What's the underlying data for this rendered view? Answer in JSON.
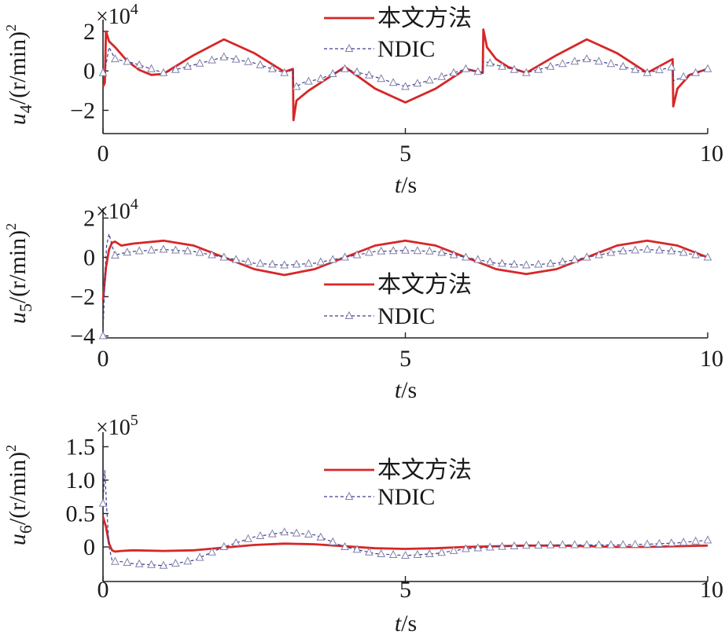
{
  "chart_data": [
    {
      "type": "line",
      "id": "u4",
      "ylabel": {
        "var": "u",
        "sub": "4",
        "unit": "/(r/min)",
        "sup": "2"
      },
      "exponent": {
        "prefix": "×10",
        "power": "4"
      },
      "xlabel": {
        "var": "t",
        "unit": "/s"
      },
      "xlim": [
        0,
        10
      ],
      "ylim": [
        -2.7,
        2.4
      ],
      "xticks": [
        "0",
        "5",
        "10"
      ],
      "xtick_values": [
        0,
        5,
        10
      ],
      "yticks": [
        "2",
        "0",
        "−2"
      ],
      "ytick_values": [
        2,
        0,
        -2
      ],
      "legend": {
        "placement": "top-center"
      },
      "series": [
        {
          "name": "本文方法",
          "color": "#d62728",
          "style": "solid",
          "x": [
            0.0,
            0.03,
            0.05,
            0.1,
            0.2,
            0.4,
            0.6,
            0.8,
            1.0,
            1.5,
            2.0,
            2.5,
            3.0,
            3.14,
            3.15,
            3.2,
            3.4,
            3.6,
            4.0,
            4.5,
            5.0,
            5.5,
            6.0,
            6.28,
            6.29,
            6.35,
            6.5,
            6.7,
            7.0,
            7.5,
            8.0,
            8.5,
            9.0,
            9.42,
            9.43,
            9.5,
            9.7,
            10.0
          ],
          "y": [
            -0.8,
            -0.6,
            2.0,
            1.5,
            1.2,
            0.5,
            0.05,
            -0.2,
            -0.15,
            0.8,
            1.6,
            0.9,
            -0.05,
            0.1,
            -2.5,
            -1.5,
            -1.0,
            -0.6,
            0.2,
            -0.9,
            -1.6,
            -0.9,
            0.1,
            -0.1,
            2.1,
            1.2,
            0.6,
            0.2,
            -0.1,
            0.8,
            1.6,
            0.9,
            -0.1,
            0.6,
            -1.8,
            -0.9,
            -0.2,
            0.1
          ]
        },
        {
          "name": "NDIC",
          "color": "#3b3f8f",
          "style": "dashed-triangle",
          "x": [
            0.0,
            0.05,
            0.1,
            0.2,
            0.5,
            1.0,
            1.5,
            2.0,
            2.5,
            3.0,
            3.14,
            3.15,
            3.3,
            3.6,
            4.0,
            4.5,
            5.0,
            5.5,
            6.0,
            6.28,
            6.29,
            6.5,
            7.0,
            7.5,
            8.0,
            8.5,
            9.0,
            9.42,
            9.43,
            9.6,
            10.0
          ],
          "y": [
            -0.1,
            0.3,
            1.2,
            0.6,
            0.4,
            -0.1,
            0.3,
            0.7,
            0.4,
            -0.1,
            0.05,
            -0.9,
            -0.6,
            -0.4,
            0.1,
            -0.3,
            -0.8,
            -0.4,
            0.1,
            -0.1,
            0.5,
            0.3,
            -0.1,
            0.3,
            0.6,
            0.3,
            -0.1,
            0.2,
            -0.5,
            -0.3,
            0.1
          ]
        }
      ]
    },
    {
      "type": "line",
      "id": "u5",
      "ylabel": {
        "var": "u",
        "sub": "5",
        "unit": "/(r/min)",
        "sup": "2"
      },
      "exponent": {
        "prefix": "×10",
        "power": "4"
      },
      "xlabel": {
        "var": "t",
        "unit": "/s"
      },
      "xlim": [
        0,
        10
      ],
      "ylim": [
        -4.1,
        2.3
      ],
      "xticks": [
        "0",
        "5",
        "10"
      ],
      "xtick_values": [
        0,
        5,
        10
      ],
      "yticks": [
        "2",
        "0",
        "−2",
        "−4"
      ],
      "ytick_values": [
        2,
        0,
        -2,
        -4
      ],
      "legend": {
        "placement": "center"
      },
      "series": [
        {
          "name": "本文方法",
          "color": "#d62728",
          "style": "solid",
          "x": [
            0.0,
            0.05,
            0.1,
            0.15,
            0.2,
            0.3,
            0.5,
            1.0,
            1.5,
            2.0,
            2.5,
            3.0,
            3.5,
            4.0,
            4.5,
            5.0,
            5.5,
            6.0,
            6.5,
            7.0,
            7.5,
            8.0,
            8.5,
            9.0,
            9.5,
            10.0
          ],
          "y": [
            -2.2,
            -0.5,
            0.4,
            0.75,
            0.8,
            0.6,
            0.7,
            0.85,
            0.6,
            0.0,
            -0.6,
            -0.9,
            -0.6,
            0.0,
            0.6,
            0.85,
            0.6,
            0.0,
            -0.6,
            -0.85,
            -0.6,
            0.0,
            0.6,
            0.85,
            0.6,
            0.0
          ]
        },
        {
          "name": "NDIC",
          "color": "#3b3f8f",
          "style": "dashed-triangle",
          "x": [
            0.0,
            0.03,
            0.06,
            0.1,
            0.15,
            0.2,
            0.3,
            0.5,
            1.0,
            1.5,
            2.0,
            2.5,
            3.0,
            3.5,
            4.0,
            4.5,
            5.0,
            5.5,
            6.0,
            6.5,
            7.0,
            7.5,
            8.0,
            8.5,
            9.0,
            9.5,
            10.0
          ],
          "y": [
            -4.0,
            -1.0,
            0.6,
            1.2,
            0.6,
            0.1,
            0.2,
            0.3,
            0.4,
            0.3,
            0.0,
            -0.3,
            -0.4,
            -0.3,
            0.0,
            0.3,
            0.35,
            0.3,
            0.0,
            -0.3,
            -0.4,
            -0.3,
            0.0,
            0.3,
            0.4,
            0.3,
            0.0
          ]
        }
      ]
    },
    {
      "type": "line",
      "id": "u6",
      "ylabel": {
        "var": "u",
        "sub": "6",
        "unit": "/(r/min)",
        "sup": "2"
      },
      "exponent": {
        "prefix": "×10",
        "power": "5"
      },
      "xlabel": {
        "var": "t",
        "unit": "/s"
      },
      "xlim": [
        0,
        10
      ],
      "ylim": [
        -0.4,
        1.6
      ],
      "xticks": [
        "0",
        "5",
        "10"
      ],
      "xtick_values": [
        0,
        5,
        10
      ],
      "yticks": [
        "1.5",
        "1.0",
        "0.5",
        "0"
      ],
      "ytick_values": [
        1.5,
        1.0,
        0.5,
        0
      ],
      "legend": {
        "placement": "top-center"
      },
      "series": [
        {
          "name": "本文方法",
          "color": "#d62728",
          "style": "solid",
          "x": [
            0.0,
            0.05,
            0.1,
            0.15,
            0.2,
            0.3,
            0.5,
            1.0,
            1.5,
            2.0,
            2.5,
            3.0,
            3.5,
            4.0,
            4.5,
            5.0,
            5.5,
            6.0,
            6.5,
            7.0,
            7.5,
            8.0,
            8.5,
            9.0,
            9.5,
            10.0
          ],
          "y": [
            0.45,
            0.3,
            0.05,
            -0.05,
            -0.07,
            -0.06,
            -0.05,
            -0.06,
            -0.05,
            -0.01,
            0.03,
            0.05,
            0.04,
            0.01,
            -0.02,
            -0.03,
            -0.02,
            0.0,
            0.01,
            0.02,
            0.02,
            0.01,
            0.0,
            0.0,
            0.01,
            0.02
          ]
        },
        {
          "name": "NDIC",
          "color": "#3b3f8f",
          "style": "dashed-triangle",
          "x": [
            0.0,
            0.03,
            0.06,
            0.1,
            0.15,
            0.2,
            0.3,
            0.5,
            1.0,
            1.5,
            2.0,
            2.5,
            3.0,
            3.5,
            4.0,
            4.5,
            5.0,
            5.5,
            6.0,
            6.5,
            7.0,
            7.5,
            8.0,
            8.5,
            9.0,
            9.5,
            10.0
          ],
          "y": [
            0.65,
            1.15,
            0.6,
            0.0,
            -0.2,
            -0.22,
            -0.22,
            -0.25,
            -0.28,
            -0.2,
            0.0,
            0.15,
            0.22,
            0.18,
            0.0,
            -0.1,
            -0.13,
            -0.1,
            -0.03,
            0.0,
            0.02,
            0.03,
            0.03,
            0.03,
            0.04,
            0.06,
            0.1
          ]
        }
      ]
    }
  ]
}
